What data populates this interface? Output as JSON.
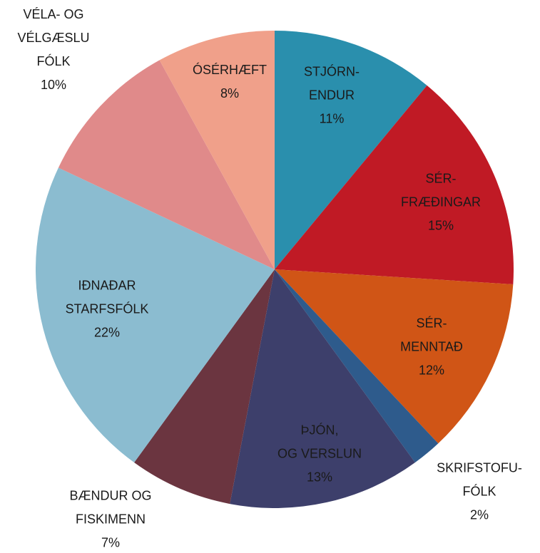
{
  "chart_data": {
    "type": "pie",
    "categories": [
      "STJÓRN-\nENDUR",
      "SÉR-\nFRÆÐINGAR",
      "SÉR-\nMENNTAÐ",
      "SKRIFSTOFU-\nFÓLK",
      "ÞJÓN,\nOG VERSLUN",
      "BÆNDUR OG\nFISKIMENN",
      "IÐNAÐAR\nSTARFSFÓLK",
      "VÉLA- OG\nVÉLGÆSLU\nFÓLK",
      "ÓSÉRHÆFT"
    ],
    "values": [
      11,
      15,
      12,
      2,
      13,
      7,
      22,
      10,
      8
    ],
    "value_labels": [
      "11%",
      "15%",
      "12%",
      "2%",
      "13%",
      "7%",
      "22%",
      "10%",
      "8%"
    ],
    "colors": [
      "#2a8fad",
      "#c01a25",
      "#d05516",
      "#2e5b8c",
      "#3d3f6b",
      "#6b3540",
      "#8bbcd0",
      "#e08a8a",
      "#f0a08a"
    ]
  }
}
